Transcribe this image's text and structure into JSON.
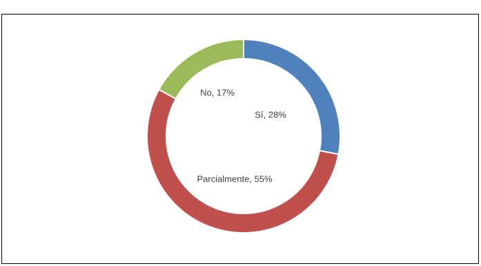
{
  "chart_data": {
    "type": "pie",
    "donut": true,
    "categories": [
      "Sí",
      "Parcialmente",
      "No"
    ],
    "values": [
      28,
      55,
      17
    ],
    "value_unit": "%",
    "data_labels": [
      "Sí, 28%",
      "Parcialmente, 55%",
      "No, 17%"
    ],
    "colors": [
      "#4F81BD",
      "#C0504D",
      "#9BBB59"
    ],
    "legend": "none",
    "title": ""
  }
}
